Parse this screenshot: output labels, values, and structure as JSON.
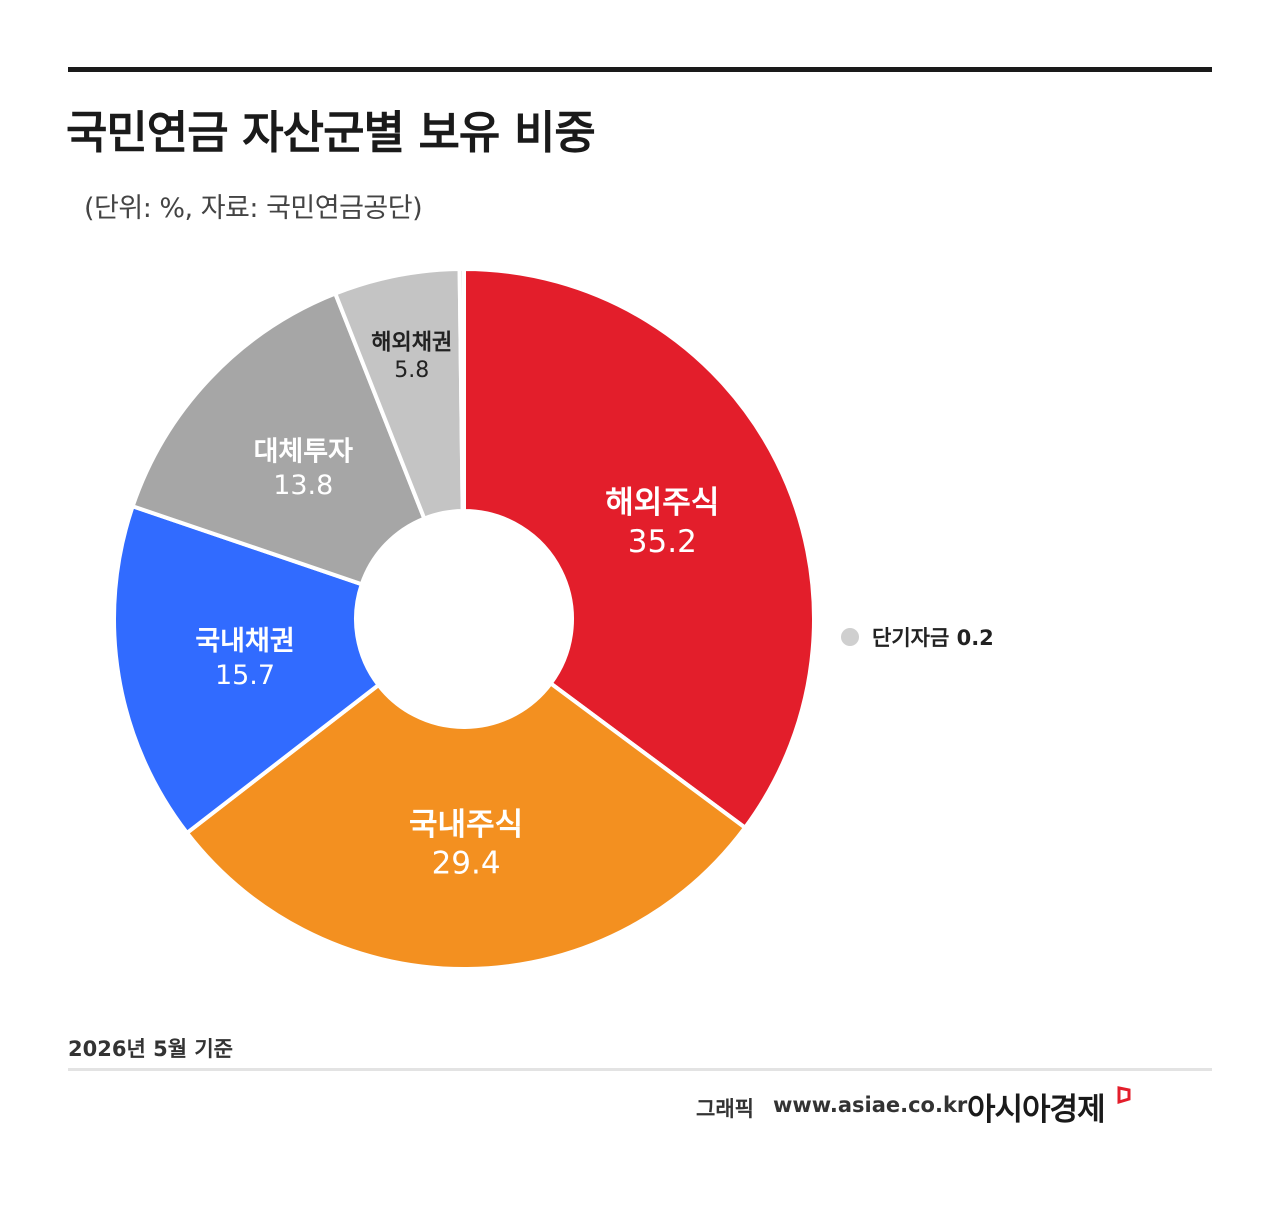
{
  "title": "국민연금 자산군별 보유 비중",
  "subtitle": "(단위: %, 자료: 국민연금공단)",
  "footnote": "2026년 5월 기준",
  "footer": {
    "credit_label": "그래픽",
    "site": "www.asiae.co.kr",
    "brand": "아시아경제"
  },
  "colors": {
    "accent": "#e31e2b",
    "overseas_stocks": "#e31e2b",
    "domestic_stocks": "#f39020",
    "domestic_bonds": "#316bff",
    "alternatives": "#a6a6a6",
    "overseas_bonds": "#c4c4c4",
    "short_term": "#cfcfcf"
  },
  "chart_data": {
    "type": "pie",
    "donut": true,
    "direction": "clockwise",
    "start": "top",
    "unit": "%",
    "slices": [
      {
        "label": "해외주식",
        "value": 35.2,
        "value_text": "35.2",
        "color": "#e31e2b",
        "text_color": "#ffffff"
      },
      {
        "label": "국내주식",
        "value": 29.4,
        "value_text": "29.4",
        "color": "#f39020",
        "text_color": "#ffffff"
      },
      {
        "label": "국내채권",
        "value": 15.7,
        "value_text": "15.7",
        "color": "#316bff",
        "text_color": "#ffffff"
      },
      {
        "label": "대체투자",
        "value": 13.8,
        "value_text": "13.8",
        "color": "#a6a6a6",
        "text_color": "#ffffff"
      },
      {
        "label": "해외채권",
        "value": 5.8,
        "value_text": "5.8",
        "color": "#c4c4c4",
        "text_color": "#222222"
      },
      {
        "label": "단기자금",
        "value": 0.2,
        "value_text": "0.2",
        "color": "#cfcfcf",
        "text_color": "#222222"
      }
    ],
    "legend_entries": [
      {
        "label": "단기자금",
        "value_text": "0.2"
      }
    ],
    "legend_position": "right"
  }
}
